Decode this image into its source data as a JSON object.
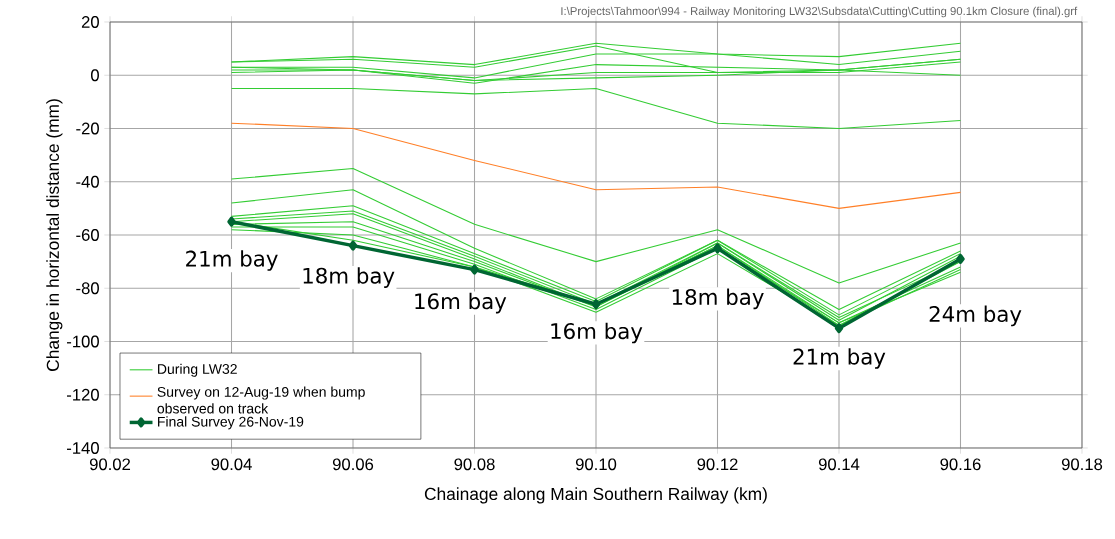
{
  "chart_data": {
    "type": "line",
    "xlabel": "Chainage along Main Southern Railway (km)",
    "ylabel": "Change in horizontal distance (mm)",
    "x": [
      90.04,
      90.06,
      90.08,
      90.1,
      90.12,
      90.14,
      90.16
    ],
    "series": [
      {
        "name": "During LW32",
        "color": "#33cc33",
        "values": [
          5,
          7,
          4,
          12,
          8,
          7,
          12
        ]
      },
      {
        "color": "#33cc33",
        "values": [
          5,
          6,
          3,
          11,
          1,
          2,
          6
        ]
      },
      {
        "color": "#33cc33",
        "values": [
          3,
          3,
          -1,
          8,
          8,
          4,
          9
        ]
      },
      {
        "color": "#33cc33",
        "values": [
          2,
          2,
          -3,
          4,
          3,
          2,
          6
        ]
      },
      {
        "color": "#33cc33",
        "values": [
          1,
          2,
          -2,
          1,
          1,
          1,
          5
        ]
      },
      {
        "color": "#33cc33",
        "values": [
          3,
          2,
          -2,
          -1,
          0,
          2,
          0
        ]
      },
      {
        "color": "#33cc33",
        "values": [
          -5,
          -5,
          -7,
          -5,
          -18,
          -20,
          -17
        ]
      },
      {
        "color": "#33cc33",
        "values": [
          -39,
          -35,
          -56,
          -70,
          -58,
          -78,
          -63
        ]
      },
      {
        "color": "#33cc33",
        "values": [
          -48,
          -43,
          -65,
          -84,
          -62,
          -88,
          -66
        ]
      },
      {
        "color": "#33cc33",
        "values": [
          -53,
          -49,
          -67,
          -85,
          -62,
          -90,
          -67
        ]
      },
      {
        "color": "#33cc33",
        "values": [
          -54,
          -51,
          -68,
          -86,
          -63,
          -91,
          -70
        ]
      },
      {
        "color": "#33cc33",
        "values": [
          -55,
          -52,
          -69,
          -87,
          -63,
          -92,
          -68
        ]
      },
      {
        "color": "#33cc33",
        "values": [
          -56,
          -55,
          -70,
          -87,
          -64,
          -93,
          -72
        ]
      },
      {
        "color": "#33cc33",
        "values": [
          -57,
          -57,
          -71,
          -88,
          -65,
          -93,
          -74
        ]
      },
      {
        "color": "#33cc33",
        "values": [
          -58,
          -60,
          -72,
          -89,
          -67,
          -94,
          -73
        ]
      },
      {
        "color": "#33cc33",
        "values": [
          -55,
          -62,
          -72,
          -86,
          -64,
          -94,
          -70
        ]
      },
      {
        "name": "Survey on 12-Aug-19 when bump observed on track",
        "color": "#ff7f27",
        "values": [
          -18,
          -20,
          -32,
          -43,
          -42,
          -50,
          -44
        ]
      },
      {
        "name": "Final Survey 26-Nov-19",
        "color": "#006633",
        "marker": "diamond",
        "values": [
          -55,
          -64,
          -73,
          -86,
          -65,
          -95,
          -69
        ]
      }
    ],
    "xlim": [
      90.02,
      90.18
    ],
    "ylim": [
      -140,
      20
    ],
    "xticks": [
      90.02,
      90.04,
      90.06,
      90.08,
      {
        "value": 90.1,
        "label": "90.10"
      },
      90.12,
      90.14,
      90.16,
      90.18
    ],
    "yticks": [
      -140,
      -120,
      -100,
      -80,
      -60,
      -40,
      -20,
      0,
      20
    ],
    "grid": true,
    "legend": "bottom left",
    "line_style": "solid",
    "annotations": [
      "21m bay",
      "18m bay",
      "16m bay",
      "16m bay",
      "18m bay",
      "21m bay",
      "24m bay",
      "I:\\Projects\\Tahmoor\\994 - Railway Monitoring LW32\\Subsdata\\Cutting\\Cutting 90.1km Closure (final).grf"
    ]
  }
}
